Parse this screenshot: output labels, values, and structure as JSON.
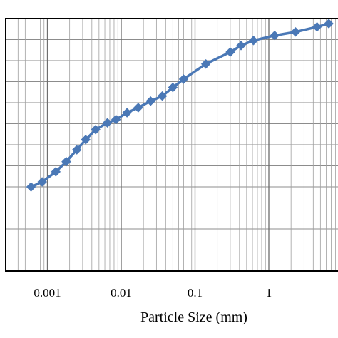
{
  "chart_data": {
    "type": "line",
    "title": "",
    "xlabel": "Particle Size (mm)",
    "ylabel": "",
    "x_scale": "log",
    "xlim": [
      0.0001,
      10
    ],
    "ylim": [
      0,
      100
    ],
    "x_tick_labels": [
      "0.001",
      "0.01",
      "0.1",
      "1",
      "1"
    ],
    "grid": true,
    "line_color": "#4a78b6",
    "marker": "diamond",
    "series": [
      {
        "x": [
          0.0006,
          0.00085,
          0.0013,
          0.0018,
          0.0025,
          0.0033,
          0.0045,
          0.0065,
          0.0085,
          0.012,
          0.017,
          0.025,
          0.036,
          0.05,
          0.07,
          0.14,
          0.3,
          0.42,
          0.62,
          1.2,
          2.3,
          4.5,
          6.5
        ],
        "y": [
          33.3,
          35.3,
          39.3,
          43.3,
          48.0,
          52.0,
          56.0,
          58.7,
          60.0,
          62.7,
          64.7,
          67.3,
          69.3,
          72.7,
          76.0,
          82.0,
          86.7,
          89.3,
          91.3,
          93.3,
          94.7,
          96.7,
          98.0
        ]
      }
    ]
  }
}
